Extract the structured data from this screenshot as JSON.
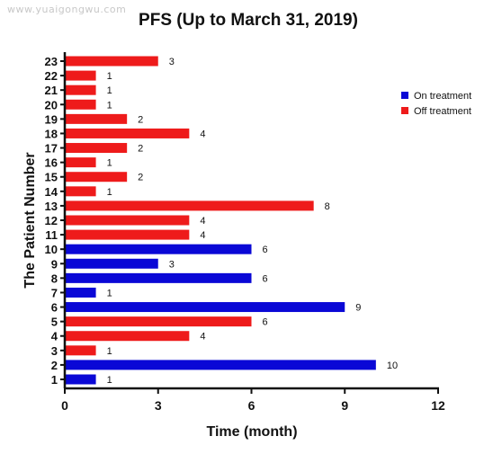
{
  "watermark": "www.yuaigongwu.com",
  "chart_data": {
    "type": "bar",
    "orientation": "horizontal",
    "title": "PFS (Up to March 31, 2019)",
    "xlabel": "Time (month)",
    "ylabel": "The Patient Number",
    "xlim": [
      0,
      12
    ],
    "xticks": [
      0,
      3,
      6,
      9,
      12
    ],
    "categories": [
      "1",
      "2",
      "3",
      "4",
      "5",
      "6",
      "7",
      "8",
      "9",
      "10",
      "11",
      "12",
      "13",
      "14",
      "15",
      "16",
      "17",
      "18",
      "19",
      "20",
      "21",
      "22",
      "23"
    ],
    "values": [
      1,
      10,
      1,
      4,
      6,
      9,
      1,
      6,
      3,
      6,
      4,
      4,
      8,
      1,
      2,
      1,
      2,
      4,
      2,
      1,
      1,
      1,
      3
    ],
    "status": [
      "On treatment",
      "On treatment",
      "Off treatment",
      "Off treatment",
      "Off treatment",
      "On treatment",
      "On treatment",
      "On treatment",
      "On treatment",
      "On treatment",
      "Off treatment",
      "Off treatment",
      "Off treatment",
      "Off treatment",
      "Off treatment",
      "Off treatment",
      "Off treatment",
      "Off treatment",
      "Off treatment",
      "Off treatment",
      "Off treatment",
      "Off treatment",
      "Off treatment"
    ],
    "legend": {
      "position": "right",
      "entries": [
        {
          "label": "On treatment",
          "color": "#0a08d6"
        },
        {
          "label": "Off treatment",
          "color": "#ee1b1b"
        }
      ]
    },
    "grid": false
  }
}
